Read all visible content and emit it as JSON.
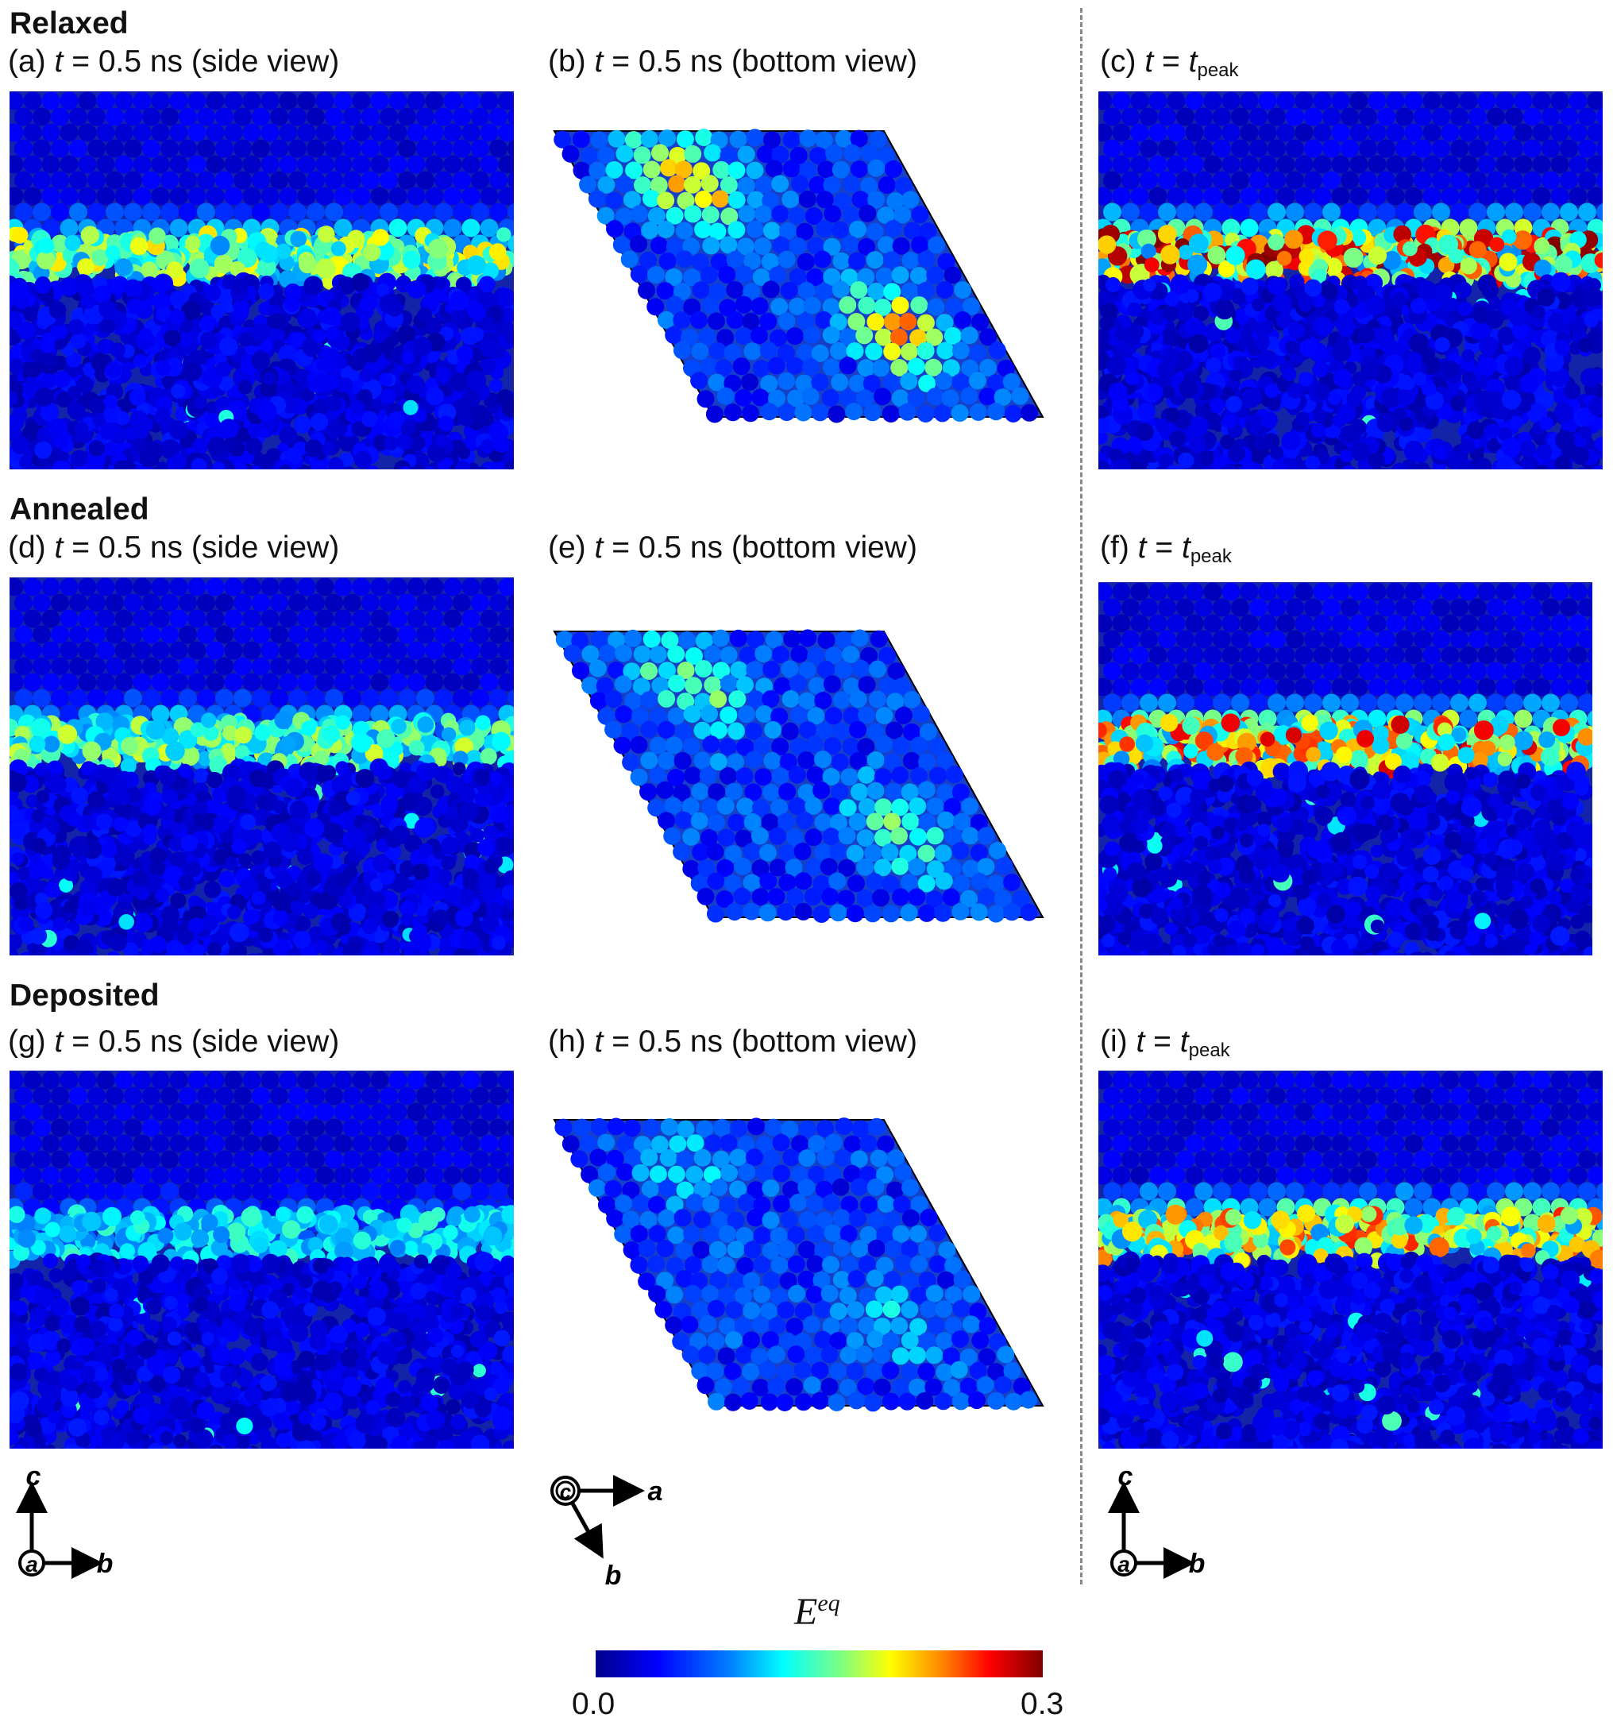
{
  "sections": {
    "relaxed": "Relaxed",
    "annealed": "Annealed",
    "deposited": "Deposited"
  },
  "panels": {
    "a": {
      "tag": "(a)",
      "t": "t",
      "eq": "= 0.5 ns (side view)"
    },
    "b": {
      "tag": "(b)",
      "t": "t",
      "eq": "= 0.5 ns (bottom view)"
    },
    "c": {
      "tag": "(c)",
      "t": "t",
      "eq": "=",
      "t2": "t",
      "sub": "peak"
    },
    "d": {
      "tag": "(d)",
      "t": "t",
      "eq": "= 0.5 ns (side view)"
    },
    "e": {
      "tag": "(e)",
      "t": "t",
      "eq": "= 0.5 ns (bottom view)"
    },
    "f": {
      "tag": "(f)",
      "t": "t",
      "eq": "=",
      "t2": "t",
      "sub": "peak"
    },
    "g": {
      "tag": "(g)",
      "t": "t",
      "eq": "= 0.5 ns (side view)"
    },
    "h": {
      "tag": "(h)",
      "t": "t",
      "eq": "= 0.5 ns (bottom view)"
    },
    "i": {
      "tag": "(i)",
      "t": "t",
      "eq": "=",
      "t2": "t",
      "sub": "peak"
    }
  },
  "axes": {
    "side": {
      "up": "c",
      "right": "b",
      "out": "a"
    },
    "bottom": {
      "out": "c",
      "right": "a",
      "down": "b"
    }
  },
  "colorbar": {
    "title": "E",
    "title_sup": "eq",
    "min": "0.0",
    "max": "0.3",
    "colors": [
      "#00008b",
      "#0000ff",
      "#0080ff",
      "#00ffff",
      "#80ff80",
      "#ffff00",
      "#ff8000",
      "#ff0000",
      "#800000"
    ]
  },
  "colors": {
    "atom_dark": "#0a1a9c",
    "atom_mid": "#1f4fe0",
    "divider": "#888888"
  }
}
